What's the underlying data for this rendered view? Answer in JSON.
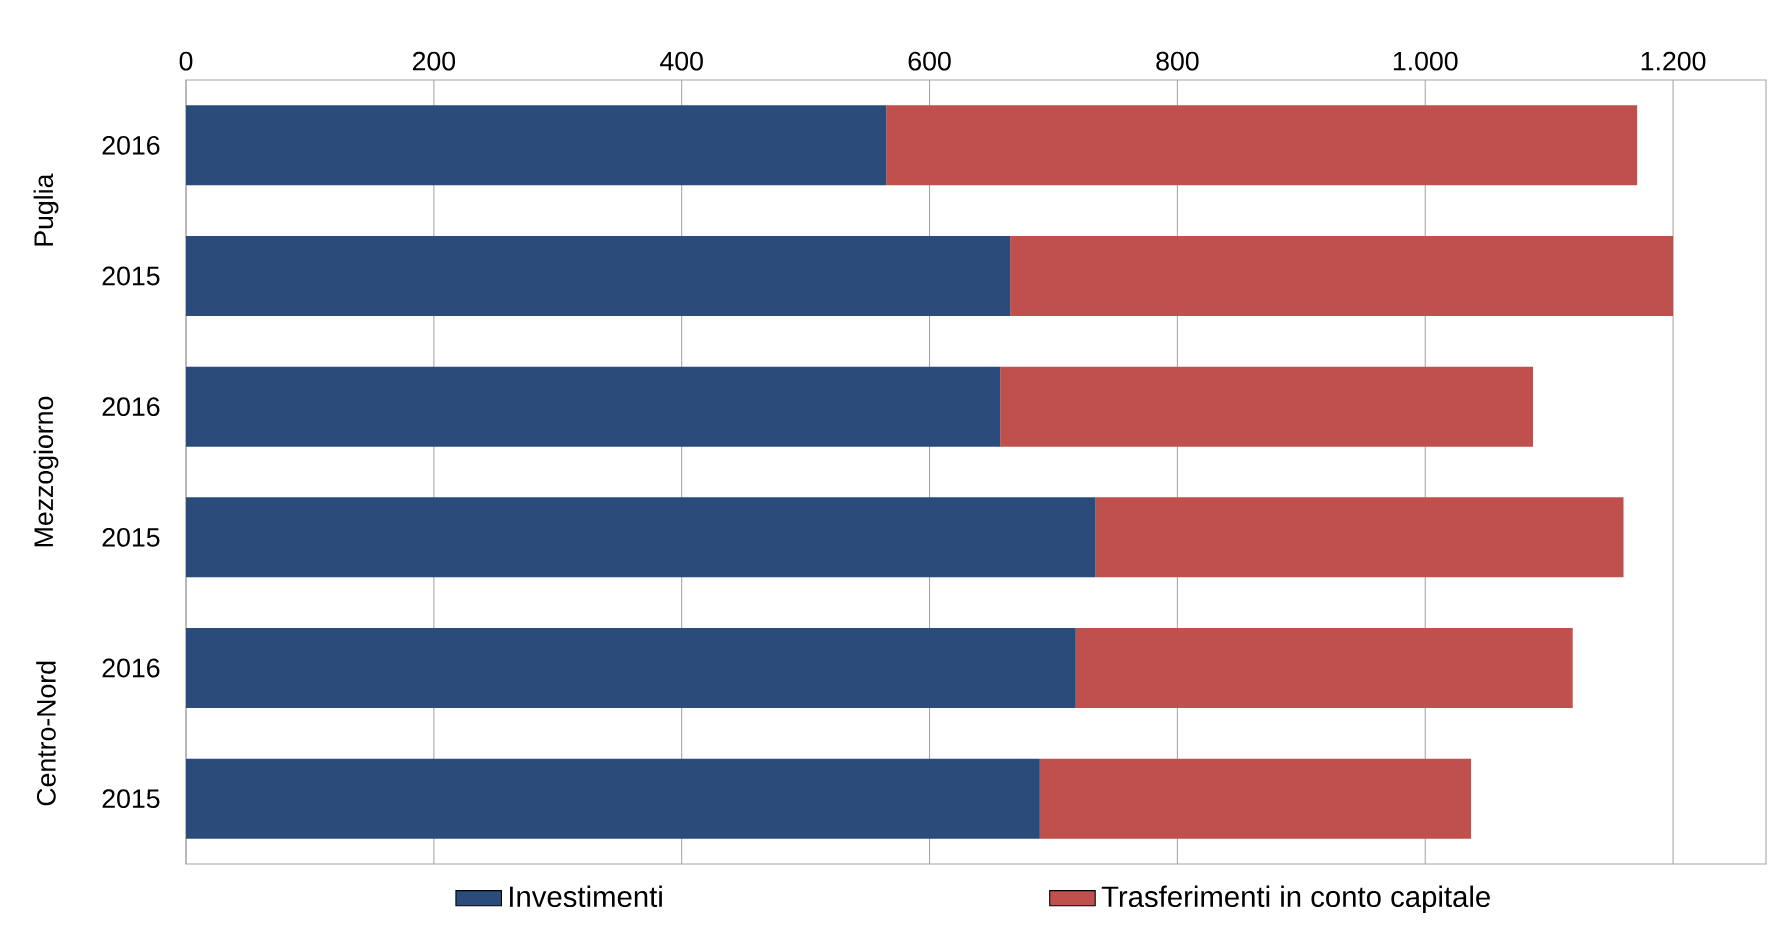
{
  "chart_data": {
    "type": "bar",
    "orientation": "horizontal",
    "stacked": true,
    "categories": [
      "2016",
      "2015",
      "2016",
      "2015",
      "2016",
      "2015"
    ],
    "annotations": [
      "Puglia",
      "Mezzogiorno",
      "Centro-Nord"
    ],
    "series": [
      {
        "name": "Investimenti",
        "color": "#2b4b7b",
        "values": [
          565,
          665,
          657,
          734,
          718,
          689
        ]
      },
      {
        "name": "Trasferimenti in conto capitale",
        "color": "#c0504d",
        "values": [
          606,
          535,
          430,
          426,
          401,
          348
        ]
      }
    ],
    "xlim": [
      0,
      1275
    ],
    "xticks": [
      0,
      200,
      400,
      600,
      800,
      {
        "value": 1000,
        "label": "1.000"
      },
      {
        "value": 1200,
        "label": "1.200"
      }
    ],
    "grid": "x",
    "legend": "bottom"
  }
}
